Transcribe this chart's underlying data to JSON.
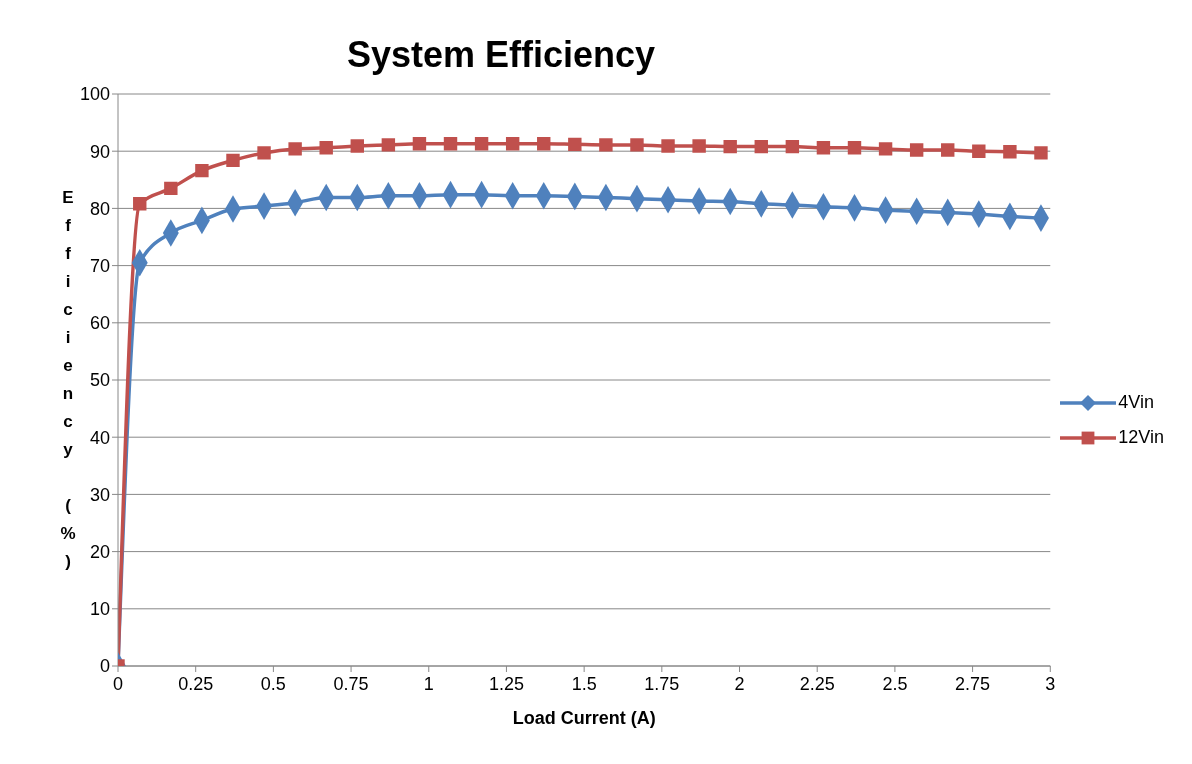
{
  "chart_data": {
    "type": "line",
    "title": "System Efficiency",
    "xlabel": "Load Current (A)",
    "ylabel": "Efficiency (%)",
    "x": [
      0,
      0.07,
      0.17,
      0.27,
      0.37,
      0.47,
      0.57,
      0.67,
      0.77,
      0.87,
      0.97,
      1.07,
      1.17,
      1.27,
      1.37,
      1.47,
      1.57,
      1.67,
      1.77,
      1.87,
      1.97,
      2.07,
      2.17,
      2.27,
      2.37,
      2.47,
      2.57,
      2.67,
      2.77,
      2.87,
      2.97
    ],
    "series": [
      {
        "name": "4Vin",
        "color": "#4f81bd",
        "marker": "diamond",
        "values": [
          0,
          70.5,
          75.7,
          77.9,
          79.9,
          80.4,
          81,
          81.9,
          81.9,
          82.2,
          82.2,
          82.4,
          82.4,
          82.2,
          82.2,
          82.1,
          81.9,
          81.7,
          81.5,
          81.3,
          81.2,
          80.8,
          80.6,
          80.3,
          80.1,
          79.7,
          79.5,
          79.3,
          79,
          78.6,
          78.3
        ]
      },
      {
        "name": "12Vin",
        "color": "#c0504d",
        "marker": "square",
        "values": [
          0,
          80.8,
          83.5,
          86.6,
          88.4,
          89.7,
          90.4,
          90.6,
          90.9,
          91.1,
          91.3,
          91.3,
          91.3,
          91.3,
          91.3,
          91.2,
          91.1,
          91.1,
          90.9,
          90.9,
          90.8,
          90.8,
          90.8,
          90.6,
          90.6,
          90.4,
          90.2,
          90.2,
          90,
          89.9,
          89.7
        ]
      }
    ],
    "xlim": [
      0,
      3
    ],
    "xticks": [
      0,
      0.25,
      0.5,
      0.75,
      1,
      1.25,
      1.5,
      1.75,
      2,
      2.25,
      2.5,
      2.75,
      3
    ],
    "ylim": [
      0,
      100
    ],
    "yticks": [
      0,
      10,
      20,
      30,
      40,
      50,
      60,
      70,
      80,
      90,
      100
    ],
    "grid": "y",
    "legend": "right",
    "line_style": "solid"
  }
}
